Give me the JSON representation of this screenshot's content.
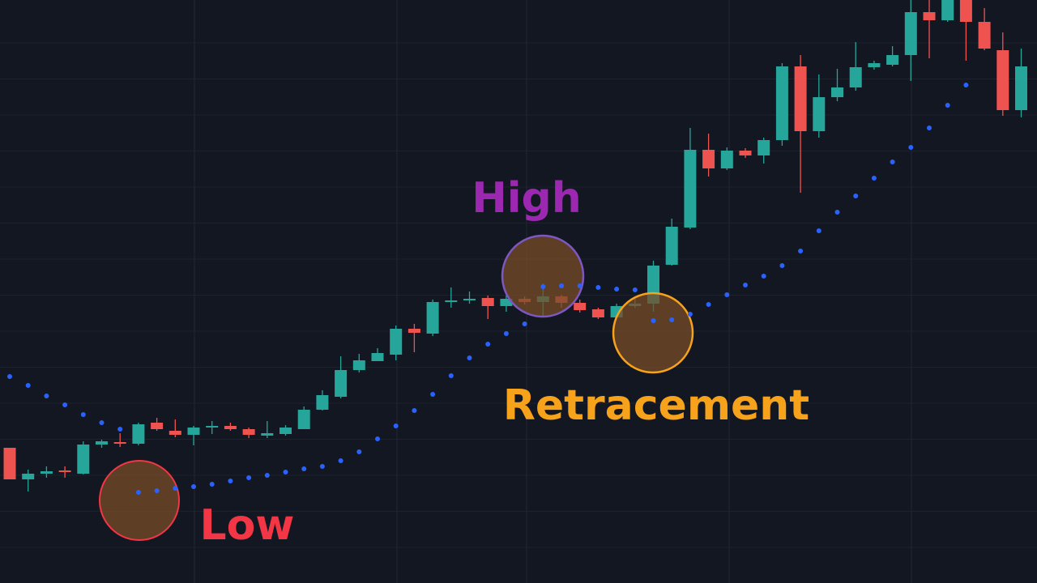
{
  "chart_data": {
    "type": "candlestick",
    "categories": [
      null,
      null,
      null,
      null,
      null,
      null,
      null,
      null,
      null,
      null,
      null,
      null,
      null,
      null,
      null,
      null,
      null,
      null,
      null,
      null,
      null,
      null,
      null,
      null,
      null,
      null,
      null,
      null,
      null,
      null,
      null,
      null,
      null,
      null,
      null,
      null,
      null,
      null,
      null,
      null,
      null,
      null,
      null,
      null,
      null,
      null,
      null,
      null,
      null,
      null,
      null,
      null,
      null,
      null,
      null,
      null
    ],
    "open": [
      16.7,
      12.8,
      13.5,
      13.9,
      13.5,
      17.1,
      17.4,
      17.2,
      19.8,
      18.8,
      18.3,
      19.2,
      19.4,
      19.0,
      18.2,
      18.4,
      19.0,
      21.4,
      23.0,
      26.3,
      27.4,
      28.2,
      31.4,
      30.8,
      34.7,
      34.9,
      35.2,
      34.2,
      35.1,
      34.7,
      35.4,
      34.6,
      33.8,
      32.8,
      34.2,
      34.5,
      39.3,
      43.9,
      53.5,
      51.2,
      53.4,
      52.8,
      54.7,
      63.8,
      55.8,
      60.0,
      61.2,
      63.7,
      64.0,
      65.2,
      70.5,
      69.5,
      72.0,
      69.3,
      65.8,
      58.4
    ],
    "high": [
      16.7,
      14.0,
      14.4,
      14.4,
      17.5,
      17.7,
      18.5,
      19.8,
      20.4,
      20.2,
      19.4,
      20.0,
      19.8,
      19.2,
      20.0,
      19.5,
      21.8,
      23.8,
      28.0,
      28.3,
      29.0,
      31.8,
      32.0,
      35.0,
      36.5,
      36.0,
      35.5,
      35.5,
      35.4,
      37.0,
      35.6,
      35.0,
      34.0,
      34.5,
      35.1,
      39.8,
      45.0,
      56.2,
      55.5,
      53.8,
      53.7,
      55.0,
      64.2,
      65.2,
      62.8,
      63.5,
      66.8,
      64.5,
      66.3,
      72.0,
      72.0,
      72.0,
      72.0,
      71.0,
      68.0,
      66.0
    ],
    "low": [
      12.8,
      11.3,
      13.0,
      13.0,
      13.4,
      16.7,
      16.8,
      17.0,
      18.8,
      18.0,
      17.0,
      18.4,
      18.8,
      17.9,
      17.9,
      18.2,
      19.0,
      21.3,
      22.8,
      26.0,
      27.4,
      27.5,
      28.5,
      30.5,
      34.0,
      34.5,
      32.6,
      33.5,
      34.4,
      33.0,
      34.0,
      33.4,
      32.6,
      32.7,
      34.0,
      33.5,
      39.2,
      43.7,
      50.2,
      51.0,
      52.5,
      51.8,
      54.0,
      48.2,
      55.0,
      59.5,
      60.8,
      63.4,
      63.8,
      62.0,
      64.8,
      69.3,
      64.5,
      65.8,
      57.7,
      57.5
    ],
    "close": [
      12.8,
      13.5,
      13.8,
      13.7,
      17.1,
      17.5,
      17.2,
      19.6,
      19.0,
      18.3,
      19.2,
      19.4,
      19.0,
      18.3,
      18.5,
      19.2,
      21.4,
      23.2,
      26.3,
      27.5,
      28.4,
      31.4,
      30.9,
      34.7,
      34.9,
      35.1,
      34.2,
      35.1,
      34.7,
      35.4,
      34.6,
      33.7,
      32.8,
      34.2,
      34.5,
      39.2,
      44.0,
      53.5,
      51.2,
      53.4,
      52.8,
      54.7,
      63.8,
      55.8,
      60.0,
      61.2,
      63.7,
      64.2,
      65.2,
      70.5,
      69.5,
      72.0,
      69.3,
      66.0,
      58.4,
      63.8
    ],
    "up_color": "#26a69a",
    "down_color": "#ef5350",
    "dots": {
      "color": "#2962ff",
      "values": [
        25.5,
        24.4,
        23.1,
        22.0,
        20.8,
        19.8,
        19.0,
        11.2,
        11.4,
        11.7,
        11.9,
        12.2,
        12.6,
        13.0,
        13.3,
        13.7,
        14.1,
        14.4,
        15.1,
        16.2,
        17.8,
        19.4,
        21.3,
        23.3,
        25.6,
        27.8,
        29.5,
        30.8,
        32.0,
        36.6,
        36.7,
        36.7,
        36.5,
        36.3,
        36.2,
        32.4,
        32.5,
        33.2,
        34.4,
        35.6,
        36.8,
        37.9,
        39.2,
        41.0,
        43.5,
        45.8,
        47.8,
        50.0,
        52.0,
        53.8,
        56.2,
        59.0,
        61.5,
        null,
        null,
        null
      ]
    },
    "annotations": [
      {
        "text": "High",
        "color": "#9c27b0"
      },
      {
        "text": "Retracement",
        "color": "#f7a21b"
      },
      {
        "text": "Low",
        "color": "#f23645"
      }
    ],
    "ylim": [
      0,
      72
    ],
    "grid": true
  }
}
